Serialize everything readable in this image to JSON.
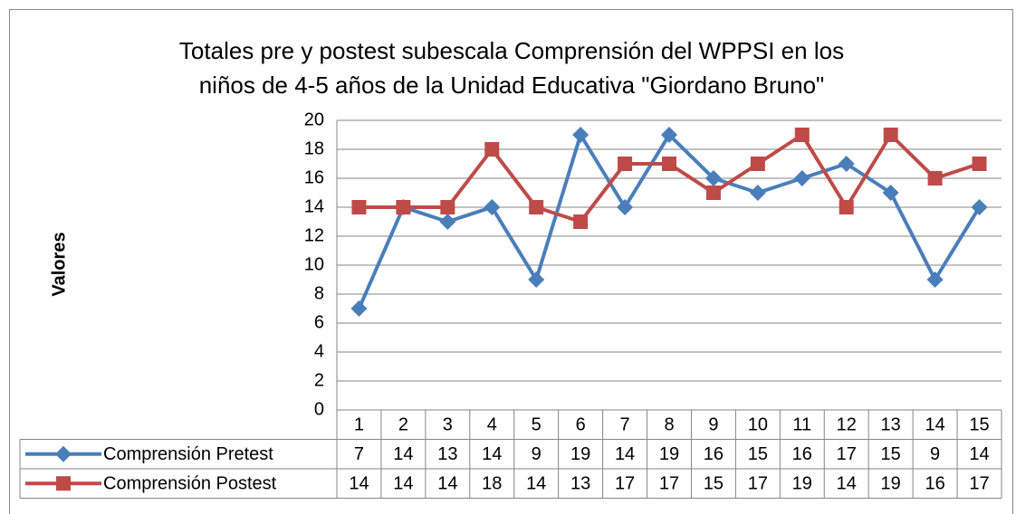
{
  "chart_data": {
    "type": "line",
    "title": [
      "Totales pre y postest subescala Comprensión del WPPSI en los",
      "niños de 4-5 años de la Unidad Educativa \"Giordano Bruno\""
    ],
    "y_label": "Valores",
    "categories": [
      "1",
      "2",
      "3",
      "4",
      "5",
      "6",
      "7",
      "8",
      "9",
      "10",
      "11",
      "12",
      "13",
      "14",
      "15"
    ],
    "series": [
      {
        "name": "Comprensión Pretest",
        "color": "#4a7ebb",
        "marker": "diamond",
        "values": [
          7,
          14,
          13,
          14,
          9,
          19,
          14,
          19,
          16,
          15,
          16,
          17,
          15,
          9,
          14
        ]
      },
      {
        "name": "Comprensión Postest",
        "color": "#be4b48",
        "marker": "square",
        "values": [
          14,
          14,
          14,
          18,
          14,
          13,
          17,
          17,
          15,
          17,
          19,
          14,
          19,
          16,
          17
        ]
      }
    ],
    "ylim": [
      0,
      20
    ],
    "yticks": [
      0,
      2,
      4,
      6,
      8,
      10,
      12,
      14,
      16,
      18,
      20
    ],
    "grid": true,
    "data_table": true
  }
}
